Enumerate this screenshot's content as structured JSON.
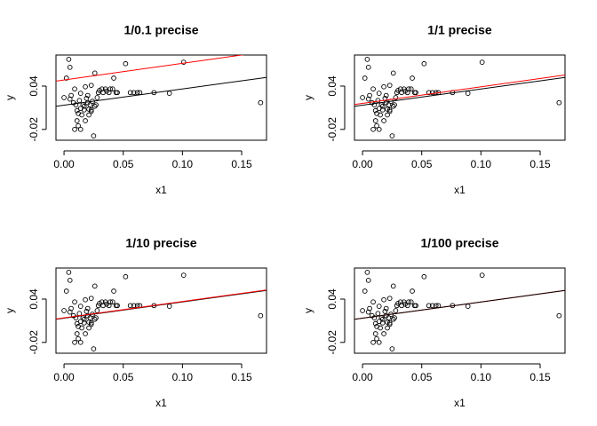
{
  "chart_data": [
    {
      "type": "scatter",
      "title": "1/0.1 precise",
      "x_label": "x1",
      "y_label": "y",
      "color": "#000000",
      "x": [
        0.004,
        0.005,
        0.002,
        0.0,
        0.005,
        0.006,
        0.008,
        0.009,
        0.01,
        0.011,
        0.012,
        0.013,
        0.014,
        0.014,
        0.015,
        0.016,
        0.017,
        0.017,
        0.018,
        0.019,
        0.02,
        0.02,
        0.021,
        0.022,
        0.023,
        0.023,
        0.024,
        0.025,
        0.026,
        0.026,
        0.027,
        0.028,
        0.029,
        0.03,
        0.032,
        0.033,
        0.035,
        0.036,
        0.038,
        0.039,
        0.041,
        0.042,
        0.044,
        0.045,
        0.052,
        0.056,
        0.059,
        0.062,
        0.064,
        0.076,
        0.089,
        0.101,
        0.166,
        0.012,
        0.014,
        0.011,
        0.009,
        0.021,
        0.023,
        0.018
      ],
      "y": [
        0.077,
        0.066,
        0.051,
        0.024,
        0.022,
        0.027,
        0.017,
        0.036,
        0.014,
        0.006,
        0.002,
        0.02,
        0.009,
        0.03,
        0.0,
        0.014,
        0.012,
        0.007,
        0.039,
        0.023,
        0.017,
        0.027,
        0.008,
        0.014,
        0.005,
        0.007,
        0.019,
        -0.029,
        0.058,
        0.012,
        0.014,
        0.024,
        0.031,
        0.034,
        0.036,
        0.031,
        0.036,
        0.033,
        0.031,
        0.036,
        0.036,
        0.051,
        0.031,
        0.031,
        0.071,
        0.031,
        0.031,
        0.031,
        0.031,
        0.031,
        0.03,
        0.073,
        0.017,
        -0.015,
        -0.02,
        -0.008,
        -0.02,
        0.0,
        0.041,
        -0.008
      ],
      "fits": [
        {
          "color": "#000000",
          "intercept": 0.0135,
          "slope": 0.225
        },
        {
          "color": "#ff0000",
          "intercept": 0.0485,
          "slope": 0.23
        }
      ],
      "xlim": [
        -0.0068,
        0.171
      ],
      "ylim": [
        -0.035,
        0.083
      ],
      "xticks": [
        {
          "value": 0,
          "label": "0.00"
        },
        0.05,
        {
          "value": 0.1,
          "label": "0.10"
        },
        0.15
      ],
      "yticks": [
        -0.02,
        0.04
      ]
    },
    {
      "type": "scatter",
      "title": "1/1 precise",
      "x_label": "x1",
      "y_label": "y",
      "color": "#000000",
      "x": [
        0.004,
        0.005,
        0.002,
        0.0,
        0.005,
        0.006,
        0.008,
        0.009,
        0.01,
        0.011,
        0.012,
        0.013,
        0.014,
        0.014,
        0.015,
        0.016,
        0.017,
        0.017,
        0.018,
        0.019,
        0.02,
        0.02,
        0.021,
        0.022,
        0.023,
        0.023,
        0.024,
        0.025,
        0.026,
        0.026,
        0.027,
        0.028,
        0.029,
        0.03,
        0.032,
        0.033,
        0.035,
        0.036,
        0.038,
        0.039,
        0.041,
        0.042,
        0.044,
        0.045,
        0.052,
        0.056,
        0.059,
        0.062,
        0.064,
        0.076,
        0.089,
        0.101,
        0.166,
        0.012,
        0.014,
        0.011,
        0.009,
        0.021,
        0.023,
        0.018
      ],
      "y": [
        0.077,
        0.066,
        0.051,
        0.024,
        0.022,
        0.027,
        0.017,
        0.036,
        0.014,
        0.006,
        0.002,
        0.02,
        0.009,
        0.03,
        0.0,
        0.014,
        0.012,
        0.007,
        0.039,
        0.023,
        0.017,
        0.027,
        0.008,
        0.014,
        0.005,
        0.007,
        0.019,
        -0.029,
        0.058,
        0.012,
        0.014,
        0.024,
        0.031,
        0.034,
        0.036,
        0.031,
        0.036,
        0.033,
        0.031,
        0.036,
        0.036,
        0.051,
        0.031,
        0.031,
        0.071,
        0.031,
        0.031,
        0.031,
        0.031,
        0.031,
        0.03,
        0.073,
        0.017,
        -0.015,
        -0.02,
        -0.008,
        -0.02,
        0.0,
        0.041,
        -0.008
      ],
      "fits": [
        {
          "color": "#000000",
          "intercept": 0.0135,
          "slope": 0.225
        },
        {
          "color": "#ff0000",
          "intercept": 0.016,
          "slope": 0.23
        }
      ],
      "xlim": [
        -0.0068,
        0.171
      ],
      "ylim": [
        -0.035,
        0.083
      ],
      "xticks": [
        {
          "value": 0,
          "label": "0.00"
        },
        0.05,
        {
          "value": 0.1,
          "label": "0.10"
        },
        0.15
      ],
      "yticks": [
        -0.02,
        0.04
      ]
    },
    {
      "type": "scatter",
      "title": "1/10 precise",
      "x_label": "x1",
      "y_label": "y",
      "color": "#000000",
      "x": [
        0.004,
        0.005,
        0.002,
        0.0,
        0.005,
        0.006,
        0.008,
        0.009,
        0.01,
        0.011,
        0.012,
        0.013,
        0.014,
        0.014,
        0.015,
        0.016,
        0.017,
        0.017,
        0.018,
        0.019,
        0.02,
        0.02,
        0.021,
        0.022,
        0.023,
        0.023,
        0.024,
        0.025,
        0.026,
        0.026,
        0.027,
        0.028,
        0.029,
        0.03,
        0.032,
        0.033,
        0.035,
        0.036,
        0.038,
        0.039,
        0.041,
        0.042,
        0.044,
        0.045,
        0.052,
        0.056,
        0.059,
        0.062,
        0.064,
        0.076,
        0.089,
        0.101,
        0.166,
        0.012,
        0.014,
        0.011,
        0.009,
        0.021,
        0.023,
        0.018
      ],
      "y": [
        0.077,
        0.066,
        0.051,
        0.024,
        0.022,
        0.027,
        0.017,
        0.036,
        0.014,
        0.006,
        0.002,
        0.02,
        0.009,
        0.03,
        0.0,
        0.014,
        0.012,
        0.007,
        0.039,
        0.023,
        0.017,
        0.027,
        0.008,
        0.014,
        0.005,
        0.007,
        0.019,
        -0.029,
        0.058,
        0.012,
        0.014,
        0.024,
        0.031,
        0.034,
        0.036,
        0.031,
        0.036,
        0.033,
        0.031,
        0.036,
        0.036,
        0.051,
        0.031,
        0.031,
        0.071,
        0.031,
        0.031,
        0.031,
        0.031,
        0.031,
        0.03,
        0.073,
        0.017,
        -0.015,
        -0.02,
        -0.008,
        -0.02,
        0.0,
        0.041,
        -0.008
      ],
      "fits": [
        {
          "color": "#000000",
          "intercept": 0.0135,
          "slope": 0.225
        },
        {
          "color": "#ff0000",
          "intercept": 0.014,
          "slope": 0.226
        }
      ],
      "xlim": [
        -0.0068,
        0.171
      ],
      "ylim": [
        -0.035,
        0.083
      ],
      "xticks": [
        {
          "value": 0,
          "label": "0.00"
        },
        0.05,
        {
          "value": 0.1,
          "label": "0.10"
        },
        0.15
      ],
      "yticks": [
        -0.02,
        0.04
      ]
    },
    {
      "type": "scatter",
      "title": "1/100 precise",
      "x_label": "x1",
      "y_label": "y",
      "color": "#000000",
      "x": [
        0.004,
        0.005,
        0.002,
        0.0,
        0.005,
        0.006,
        0.008,
        0.009,
        0.01,
        0.011,
        0.012,
        0.013,
        0.014,
        0.014,
        0.015,
        0.016,
        0.017,
        0.017,
        0.018,
        0.019,
        0.02,
        0.02,
        0.021,
        0.022,
        0.023,
        0.023,
        0.024,
        0.025,
        0.026,
        0.026,
        0.027,
        0.028,
        0.029,
        0.03,
        0.032,
        0.033,
        0.035,
        0.036,
        0.038,
        0.039,
        0.041,
        0.042,
        0.044,
        0.045,
        0.052,
        0.056,
        0.059,
        0.062,
        0.064,
        0.076,
        0.089,
        0.101,
        0.166,
        0.012,
        0.014,
        0.011,
        0.009,
        0.021,
        0.023,
        0.018
      ],
      "y": [
        0.077,
        0.066,
        0.051,
        0.024,
        0.022,
        0.027,
        0.017,
        0.036,
        0.014,
        0.006,
        0.002,
        0.02,
        0.009,
        0.03,
        0.0,
        0.014,
        0.012,
        0.007,
        0.039,
        0.023,
        0.017,
        0.027,
        0.008,
        0.014,
        0.005,
        0.007,
        0.019,
        -0.029,
        0.058,
        0.012,
        0.014,
        0.024,
        0.031,
        0.034,
        0.036,
        0.031,
        0.036,
        0.033,
        0.031,
        0.036,
        0.036,
        0.051,
        0.031,
        0.031,
        0.071,
        0.031,
        0.031,
        0.031,
        0.031,
        0.031,
        0.03,
        0.073,
        0.017,
        -0.015,
        -0.02,
        -0.008,
        -0.02,
        0.0,
        0.041,
        -0.008
      ],
      "fits": [
        {
          "color": "#ff0000",
          "intercept": 0.0135,
          "slope": 0.225
        },
        {
          "color": "#000000",
          "intercept": 0.0135,
          "slope": 0.225
        }
      ],
      "xlim": [
        -0.0068,
        0.171
      ],
      "ylim": [
        -0.035,
        0.083
      ],
      "xticks": [
        {
          "value": 0,
          "label": "0.00"
        },
        0.05,
        {
          "value": 0.1,
          "label": "0.10"
        },
        0.15
      ],
      "yticks": [
        -0.02,
        0.04
      ]
    }
  ]
}
